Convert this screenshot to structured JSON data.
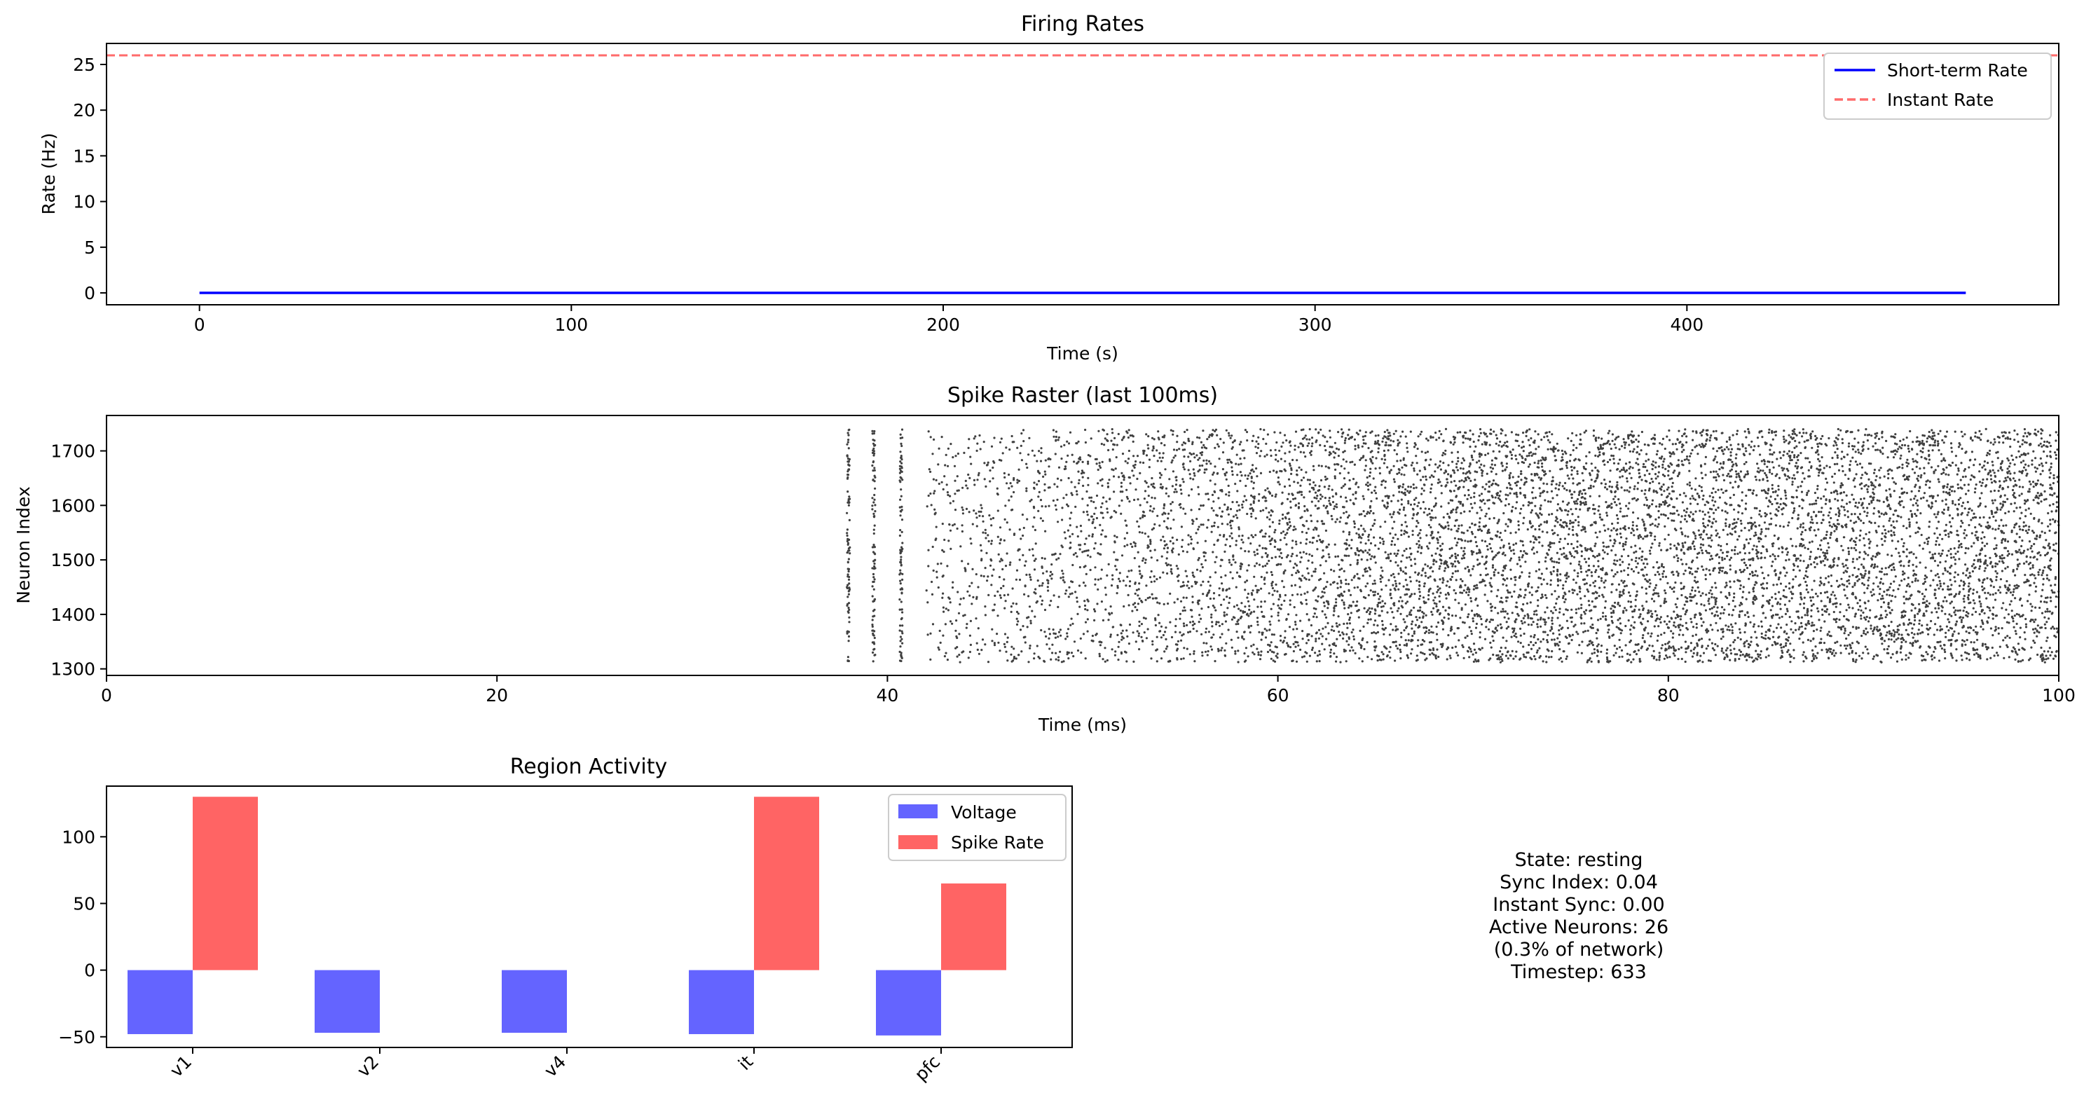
{
  "colors": {
    "short_term": "#0000ff",
    "instant": "#ff6b6b",
    "voltage_bar": "#6464ff",
    "spike_rate_bar": "#ff6464",
    "raster_dots": "#000000"
  },
  "chart_data": [
    {
      "type": "line",
      "title": "Firing Rates",
      "xlabel": "Time (s)",
      "ylabel": "Rate (Hz)",
      "xlim": [
        -25,
        500
      ],
      "ylim": [
        -1.3,
        27.3
      ],
      "xticks": [
        0,
        100,
        200,
        300,
        400
      ],
      "yticks": [
        0,
        5,
        10,
        15,
        20,
        25
      ],
      "legend": "top-right",
      "series": [
        {
          "name": "Short-term Rate",
          "style": "solid",
          "x": [
            0,
            475
          ],
          "y": [
            0,
            0
          ]
        },
        {
          "name": "Instant Rate",
          "style": "dashed",
          "x": [
            -25,
            500
          ],
          "y": [
            26,
            26
          ]
        }
      ]
    },
    {
      "type": "scatter",
      "title": "Spike Raster (last 100ms)",
      "xlabel": "Time (ms)",
      "ylabel": "Neuron Index",
      "xlim": [
        0,
        100
      ],
      "ylim": [
        1288,
        1765
      ],
      "xticks": [
        0,
        20,
        40,
        60,
        80,
        100
      ],
      "yticks": [
        1300,
        1400,
        1500,
        1600,
        1700
      ],
      "series": [
        {
          "burst_times": [
            38,
            39.3,
            40.7
          ],
          "dense_start": 42,
          "dense_end": 100,
          "neuron_range": [
            1312,
            1740
          ]
        }
      ]
    },
    {
      "type": "bar",
      "title": "Region Activity",
      "categories": [
        "v1",
        "v2",
        "v4",
        "it",
        "pfc"
      ],
      "ylim": [
        -58,
        138
      ],
      "yticks": [
        -50,
        0,
        50,
        100
      ],
      "legend": "top-right",
      "series": [
        {
          "name": "Voltage",
          "values": [
            -48,
            -47,
            -47,
            -48,
            -49
          ]
        },
        {
          "name": "Spike Rate",
          "values": [
            130,
            0,
            0,
            130,
            65
          ]
        }
      ]
    }
  ],
  "stats": {
    "lines": [
      "State: resting",
      "Sync Index: 0.04",
      "Instant Sync: 0.00",
      "Active Neurons: 26",
      "(0.3% of network)",
      "Timestep: 633"
    ]
  }
}
